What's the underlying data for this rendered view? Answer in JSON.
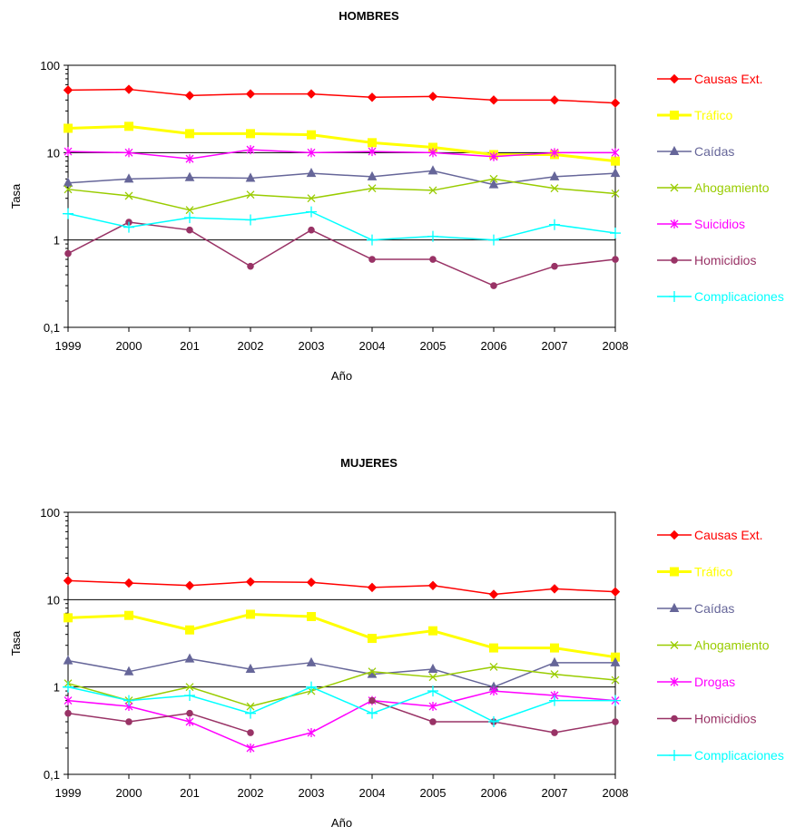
{
  "chart_data": [
    {
      "type": "line",
      "title": "HOMBRES",
      "xlabel": "Año",
      "ylabel": "Tasa",
      "yscale": "log",
      "ylim": [
        0.1,
        100
      ],
      "yticks": [
        "0,1",
        "1",
        "10",
        "100"
      ],
      "grid": "major gridlines at 1 and 10",
      "legend_position": "right",
      "categories": [
        "1999",
        "2000",
        "201",
        "2002",
        "2003",
        "2004",
        "2005",
        "2006",
        "2007",
        "2008"
      ],
      "series": [
        {
          "name": "Causas Ext.",
          "color": "#ff0000",
          "marker": "diamond",
          "values": [
            52,
            53,
            45,
            47,
            47,
            43,
            44,
            40,
            40,
            37
          ]
        },
        {
          "name": "Tráfico",
          "color": "#ffff00",
          "marker": "square",
          "values": [
            19,
            20,
            16.5,
            16.5,
            16,
            13,
            11.5,
            9.5,
            9.5,
            8
          ]
        },
        {
          "name": "Caídas",
          "color": "#666699",
          "marker": "triangle",
          "values": [
            4.5,
            5,
            5.2,
            5.1,
            5.8,
            5.3,
            6.2,
            4.3,
            5.3,
            5.8
          ]
        },
        {
          "name": "Ahogamiento",
          "color": "#99cc00",
          "marker": "x",
          "values": [
            3.8,
            3.2,
            2.2,
            3.3,
            3,
            3.9,
            3.7,
            5,
            3.9,
            3.4
          ]
        },
        {
          "name": "Suicidios",
          "color": "#ff00ff",
          "marker": "star",
          "values": [
            10.3,
            10,
            8.5,
            10.8,
            10,
            10.3,
            10,
            9,
            10,
            10
          ]
        },
        {
          "name": "Homicidios",
          "color": "#993366",
          "marker": "circle",
          "values": [
            0.7,
            1.6,
            1.3,
            0.5,
            1.3,
            0.6,
            0.6,
            0.3,
            0.5,
            0.6
          ]
        },
        {
          "name": "Complicaciones",
          "color": "#00ffff",
          "marker": "plus",
          "values": [
            2,
            1.4,
            1.8,
            1.7,
            2.1,
            1,
            1.1,
            1,
            1.5,
            1.2
          ]
        }
      ]
    },
    {
      "type": "line",
      "title": "MUJERES",
      "xlabel": "Año",
      "ylabel": "Tasa",
      "yscale": "log",
      "ylim": [
        0.1,
        100
      ],
      "yticks": [
        "0,1",
        "1",
        "10",
        "100"
      ],
      "grid": "major gridlines at 1 and 10",
      "legend_position": "right",
      "categories": [
        "1999",
        "2000",
        "201",
        "2002",
        "2003",
        "2004",
        "2005",
        "2006",
        "2007",
        "2008"
      ],
      "series": [
        {
          "name": "Causas Ext.",
          "color": "#ff0000",
          "marker": "diamond",
          "values": [
            16.5,
            15.5,
            14.5,
            16,
            15.8,
            13.8,
            14.5,
            11.5,
            13.3,
            12.3
          ]
        },
        {
          "name": "Tráfico",
          "color": "#ffff00",
          "marker": "square",
          "values": [
            6.2,
            6.6,
            4.5,
            6.8,
            6.4,
            3.6,
            4.4,
            2.8,
            2.8,
            2.2
          ]
        },
        {
          "name": "Caídas",
          "color": "#666699",
          "marker": "triangle",
          "values": [
            2,
            1.5,
            2.1,
            1.6,
            1.9,
            1.4,
            1.6,
            1,
            1.9,
            1.9
          ]
        },
        {
          "name": "Ahogamiento",
          "color": "#99cc00",
          "marker": "x",
          "values": [
            1.1,
            0.7,
            1,
            0.6,
            0.9,
            1.5,
            1.3,
            1.7,
            1.4,
            1.2
          ]
        },
        {
          "name": "Drogas",
          "color": "#ff00ff",
          "marker": "star",
          "values": [
            0.7,
            0.6,
            0.4,
            0.2,
            0.3,
            0.7,
            0.6,
            0.9,
            0.8,
            0.7
          ]
        },
        {
          "name": "Homicidios",
          "color": "#993366",
          "marker": "circle",
          "values": [
            0.5,
            0.4,
            0.5,
            0.3,
            null,
            0.7,
            0.4,
            0.4,
            0.3,
            0.4
          ]
        },
        {
          "name": "Complicaciones",
          "color": "#00ffff",
          "marker": "plus",
          "values": [
            1,
            0.7,
            0.8,
            0.5,
            1,
            0.5,
            0.9,
            0.4,
            0.7,
            0.7
          ]
        }
      ]
    }
  ]
}
